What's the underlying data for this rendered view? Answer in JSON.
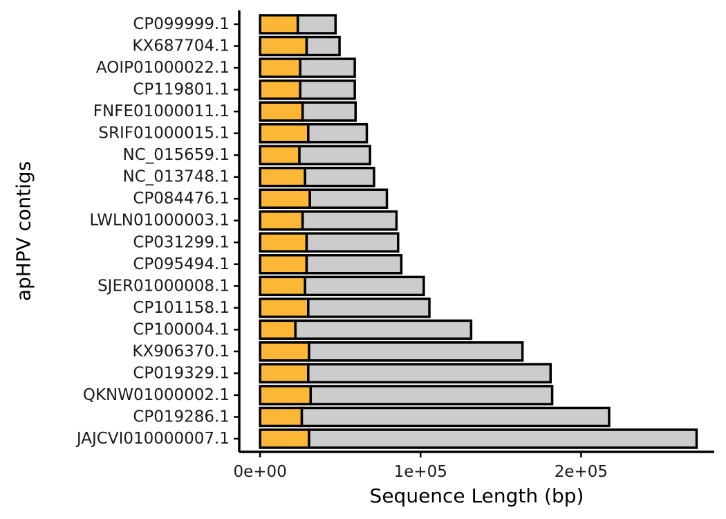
{
  "chart_data": {
    "type": "bar",
    "orientation": "horizontal",
    "stacked": true,
    "title": "",
    "xlabel": "Sequence Length (bp)",
    "ylabel": "apHPV contigs",
    "xlim": [
      -13000,
      283000
    ],
    "x_ticks": [
      0,
      100000,
      200000
    ],
    "x_tick_labels": [
      "0e+00",
      "1e+05",
      "2e+05"
    ],
    "categories": [
      "CP099999.1",
      "KX687704.1",
      "AOIP01000022.1",
      "CP119801.1",
      "FNFE01000011.1",
      "SRIF01000015.1",
      "NC_015659.1",
      "NC_013748.1",
      "CP084476.1",
      "LWLN01000003.1",
      "CP031299.1",
      "CP095494.1",
      "SJER01000008.1",
      "CP101158.1",
      "CP100004.1",
      "KX906370.1",
      "CP019329.1",
      "QKNW01000002.1",
      "CP019286.1",
      "JAJCVI010000007.1"
    ],
    "series": [
      {
        "color": "#FBB735",
        "values": [
          23500,
          29000,
          25000,
          25000,
          26500,
          30000,
          24500,
          28000,
          31000,
          26500,
          29000,
          29000,
          28000,
          30000,
          22000,
          30500,
          30000,
          31500,
          26000,
          30500
        ]
      },
      {
        "color": "#CCCCCC",
        "values": [
          23500,
          20500,
          34000,
          34000,
          33000,
          36500,
          44000,
          43000,
          48000,
          58500,
          57000,
          59000,
          74000,
          75500,
          109500,
          133000,
          151000,
          150500,
          191500,
          241500
        ]
      }
    ],
    "grid": false,
    "legend": "none"
  }
}
